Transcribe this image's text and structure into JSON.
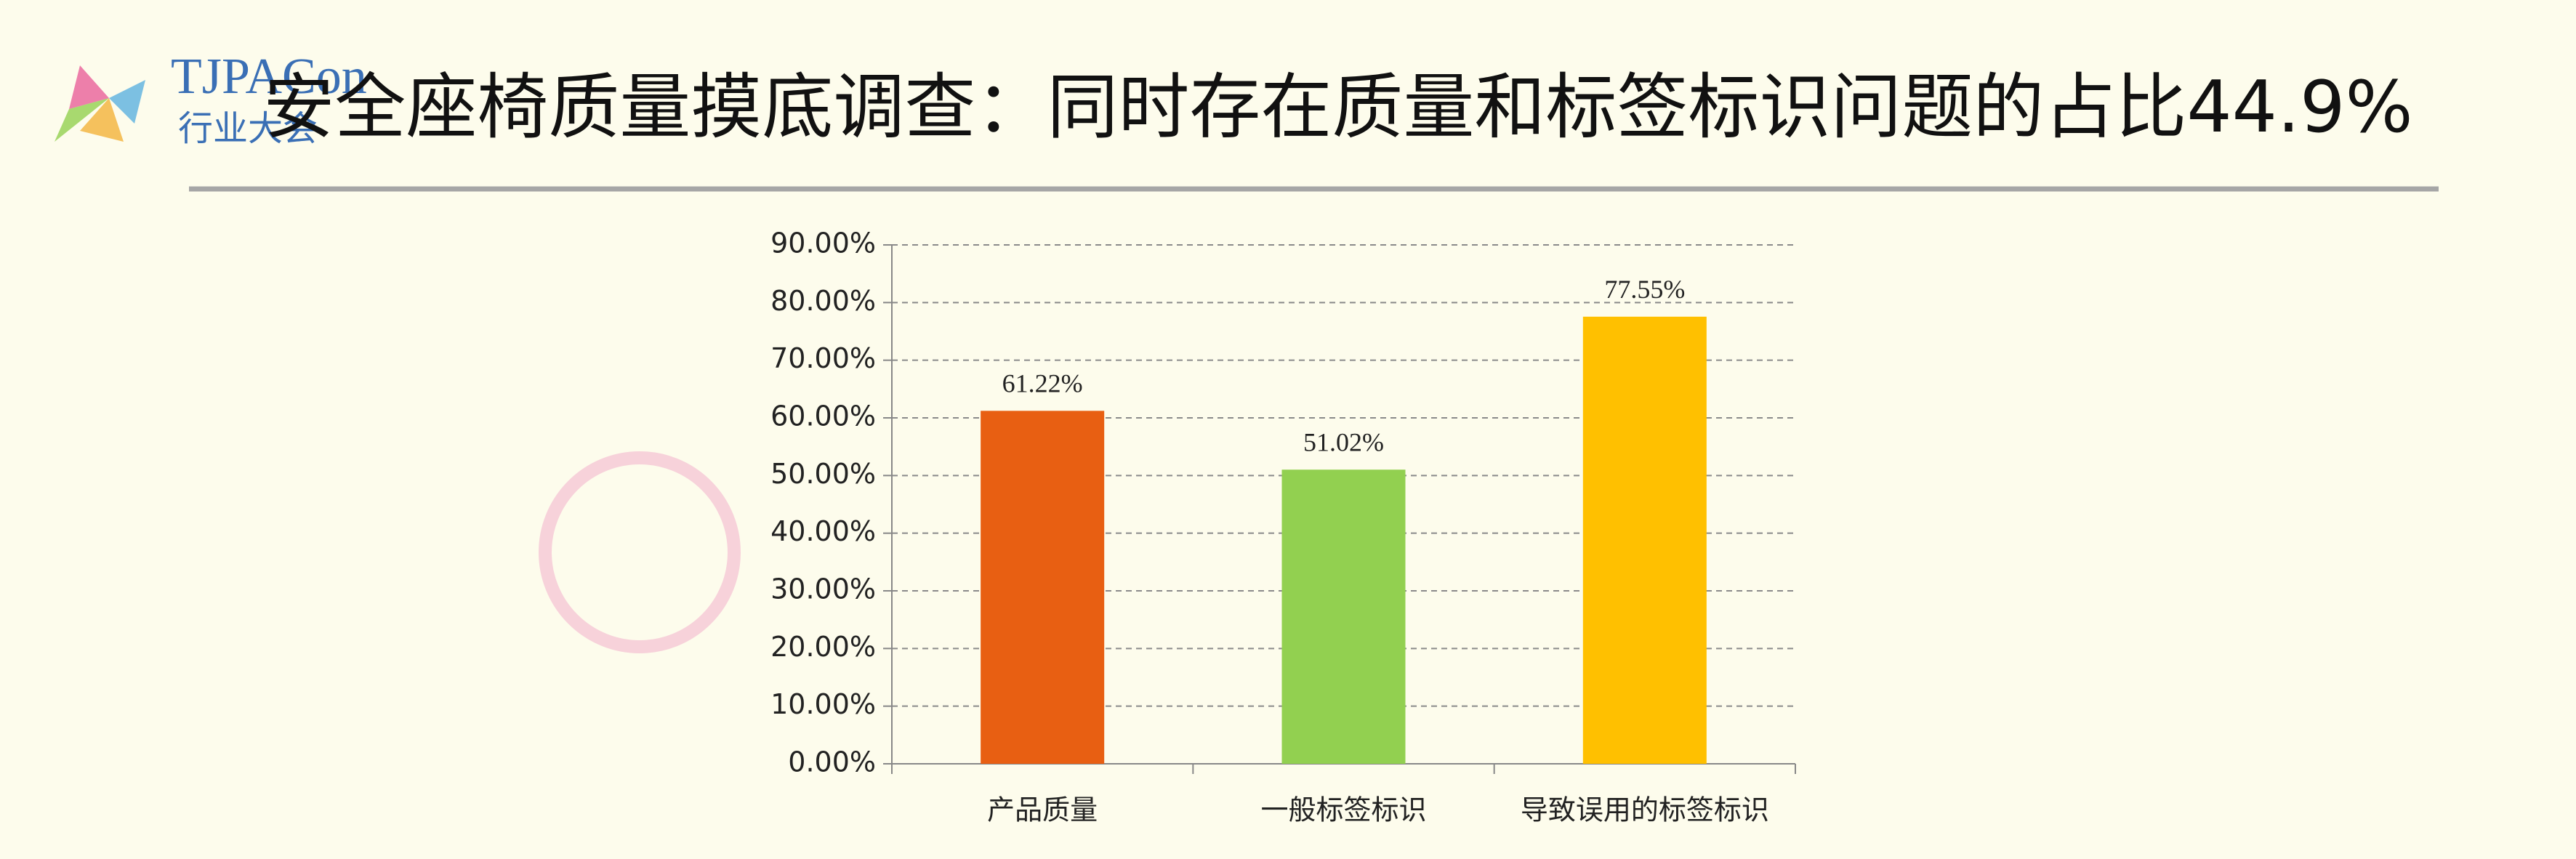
{
  "logo": {
    "name": "TJPACon",
    "subtitle": "行业大会"
  },
  "chart_data": {
    "type": "bar",
    "title": "安全座椅质量摸底调查：同时存在质量和标签标识问题的占比44.9%",
    "categories": [
      "产品质量",
      "一般标签标识",
      "导致误用的标签标识"
    ],
    "values": [
      61.22,
      51.02,
      77.55
    ],
    "value_labels": [
      "61.22%",
      "51.02%",
      "77.55%"
    ],
    "colors": [
      "#e85f12",
      "#92d050",
      "#ffc000"
    ],
    "ylim": [
      0,
      90
    ],
    "yticks": [
      {
        "value": 0,
        "label": "0.00%"
      },
      {
        "value": 10,
        "label": "10.00%"
      },
      {
        "value": 20,
        "label": "20.00%"
      },
      {
        "value": 30,
        "label": "30.00%"
      },
      {
        "value": 40,
        "label": "40.00%"
      },
      {
        "value": 50,
        "label": "50.00%"
      },
      {
        "value": 60,
        "label": "60.00%"
      },
      {
        "value": 70,
        "label": "70.00%"
      },
      {
        "value": 80,
        "label": "80.00%"
      },
      {
        "value": 90,
        "label": "90.00%"
      }
    ],
    "grid": true
  }
}
